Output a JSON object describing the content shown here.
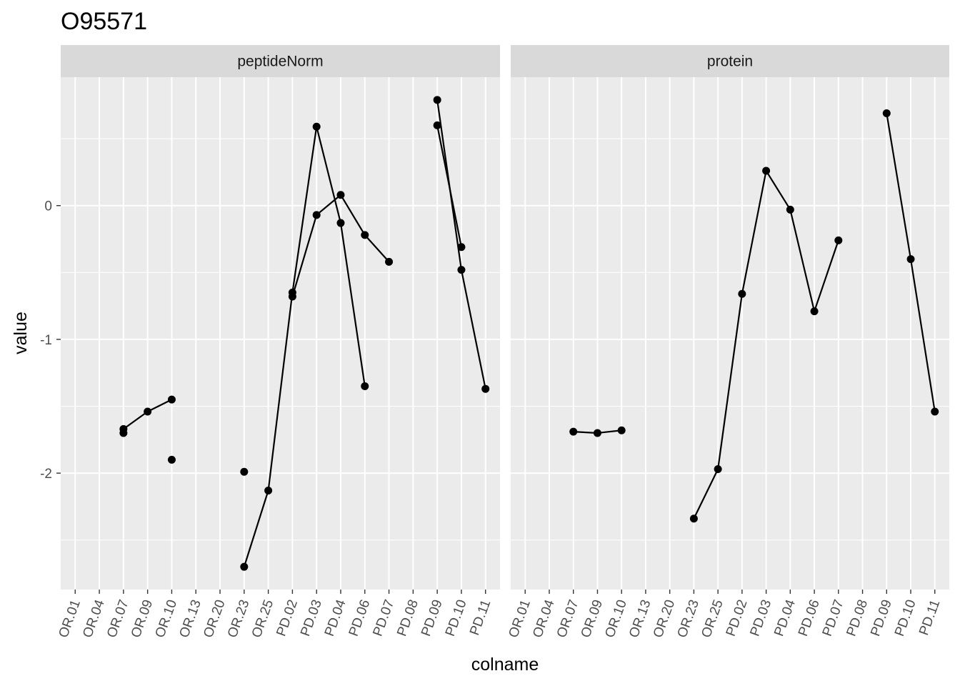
{
  "chart_data": {
    "type": "line",
    "title": "O95571",
    "xlabel": "colname",
    "ylabel": "value",
    "categories": [
      "OR.01",
      "OR.04",
      "OR.07",
      "OR.09",
      "OR.10",
      "OR.13",
      "OR.20",
      "OR.23",
      "OR.25",
      "PD.02",
      "PD.03",
      "PD.04",
      "PD.06",
      "PD.07",
      "PD.08",
      "PD.09",
      "PD.10",
      "PD.11"
    ],
    "y_ticks": [
      0,
      -1,
      -2
    ],
    "y_tick_labels": [
      "0",
      "-1",
      "-2"
    ],
    "ylim": [
      -2.87,
      0.96
    ],
    "grid": true,
    "panels": [
      {
        "label": "peptideNorm",
        "series": [
          {
            "values": [
              null,
              null,
              -1.67,
              -1.54,
              -1.45,
              null,
              null,
              -2.7,
              -2.13,
              -0.65,
              0.59,
              -0.13,
              -1.35,
              null,
              null,
              0.79,
              -0.48,
              -1.37
            ]
          },
          {
            "values": [
              null,
              null,
              -1.7,
              null,
              -1.9,
              null,
              null,
              -1.99,
              null,
              -0.68,
              -0.07,
              0.08,
              -0.22,
              -0.42,
              null,
              0.6,
              -0.31,
              null
            ]
          }
        ]
      },
      {
        "label": "protein",
        "series": [
          {
            "values": [
              null,
              null,
              -1.69,
              -1.7,
              -1.68,
              null,
              null,
              -2.34,
              -1.97,
              -0.66,
              0.26,
              -0.03,
              -0.79,
              -0.26,
              null,
              0.69,
              -0.4,
              -1.54
            ]
          }
        ]
      }
    ]
  }
}
